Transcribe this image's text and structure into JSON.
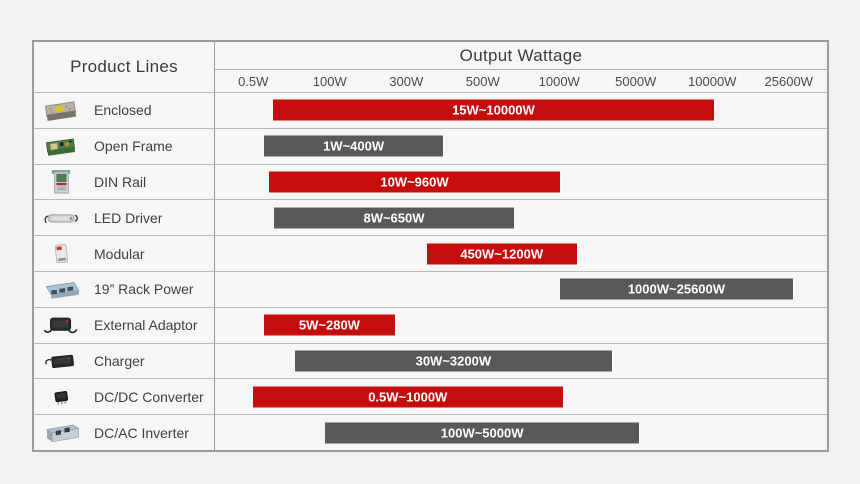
{
  "colors": {
    "red": "#c50d0d",
    "gray": "#59595b",
    "bar_text": "#ffffff"
  },
  "chart_data": {
    "type": "bar",
    "variant": "horizontal-range-bars",
    "title": "Output Wattage",
    "row_header": "Product Lines",
    "axis_ticks": [
      "0.5W",
      "100W",
      "300W",
      "500W",
      "1000W",
      "5000W",
      "10000W",
      "25600W"
    ],
    "axis_scale": "non-linear categorical wattage steps, evenly spaced ticks",
    "grid": "horizontal row separators only, no vertical gridlines",
    "rows": [
      {
        "product": "Enclosed",
        "range_label": "15W~10000W",
        "min_watt": 15,
        "max_watt": 10000,
        "color": "red",
        "icon": "enclosed-psu-icon",
        "bar_start_pct": 9.5,
        "bar_end_pct": 81.5
      },
      {
        "product": "Open Frame",
        "range_label": "1W~400W",
        "min_watt": 1,
        "max_watt": 400,
        "color": "gray",
        "icon": "open-frame-psu-icon",
        "bar_start_pct": 8.0,
        "bar_end_pct": 37.3
      },
      {
        "product": "DIN Rail",
        "range_label": "10W~960W",
        "min_watt": 10,
        "max_watt": 960,
        "color": "red",
        "icon": "din-rail-psu-icon",
        "bar_start_pct": 8.9,
        "bar_end_pct": 56.3
      },
      {
        "product": "LED Driver",
        "range_label": "8W~650W",
        "min_watt": 8,
        "max_watt": 650,
        "color": "gray",
        "icon": "led-driver-icon",
        "bar_start_pct": 9.6,
        "bar_end_pct": 48.9
      },
      {
        "product": "Modular",
        "range_label": "450W~1200W",
        "min_watt": 450,
        "max_watt": 1200,
        "color": "red",
        "icon": "modular-psu-icon",
        "bar_start_pct": 34.6,
        "bar_end_pct": 59.1
      },
      {
        "product": "19” Rack Power",
        "range_label": "1000W~25600W",
        "min_watt": 1000,
        "max_watt": 25600,
        "color": "gray",
        "icon": "rack-power-icon",
        "bar_start_pct": 56.3,
        "bar_end_pct": 94.5
      },
      {
        "product": "External Adaptor",
        "range_label": "5W~280W",
        "min_watt": 5,
        "max_watt": 280,
        "color": "red",
        "icon": "external-adaptor-icon",
        "bar_start_pct": 8.0,
        "bar_end_pct": 29.4
      },
      {
        "product": "Charger",
        "range_label": "30W~3200W",
        "min_watt": 30,
        "max_watt": 3200,
        "color": "gray",
        "icon": "charger-icon",
        "bar_start_pct": 13.0,
        "bar_end_pct": 64.9
      },
      {
        "product": "DC/DC Converter",
        "range_label": "0.5W~1000W",
        "min_watt": 0.5,
        "max_watt": 1000,
        "color": "red",
        "icon": "dc-dc-converter-icon",
        "bar_start_pct": 6.2,
        "bar_end_pct": 56.8
      },
      {
        "product": "DC/AC Inverter",
        "range_label": "100W~5000W",
        "min_watt": 100,
        "max_watt": 5000,
        "color": "gray",
        "icon": "dc-ac-inverter-icon",
        "bar_start_pct": 18.0,
        "bar_end_pct": 69.3
      }
    ]
  }
}
